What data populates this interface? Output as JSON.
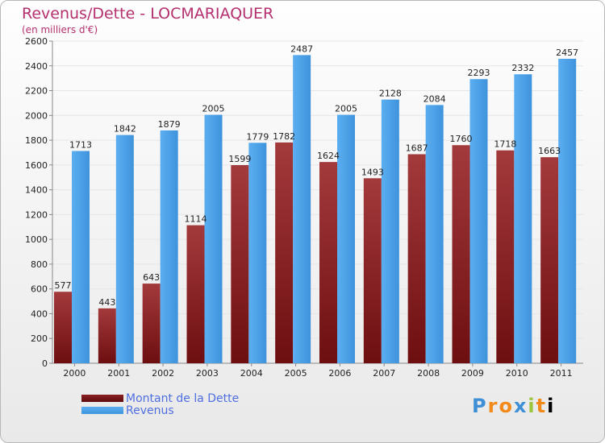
{
  "header": {
    "title": "Revenus/Dette - LOCMARIAQUER",
    "subtitle": "(en milliers d'€)"
  },
  "legend": {
    "debt_label": "Montant de la Dette",
    "revenue_label": "Revenus"
  },
  "logo": {
    "text": "Proxiti"
  },
  "colors": {
    "debt": "#7a1416",
    "debt_light": "#a33a3c",
    "revenue": "#4aa1e8",
    "revenue_light": "#62b4f2",
    "title": "#b5306e",
    "legend_text": "#4f6fe0",
    "grid": "#e6e6e6",
    "axis": "#888888"
  },
  "chart_data": {
    "type": "bar",
    "categories": [
      "2000",
      "2001",
      "2002",
      "2003",
      "2004",
      "2005",
      "2006",
      "2007",
      "2008",
      "2009",
      "2010",
      "2011"
    ],
    "series": [
      {
        "name": "Montant de la Dette",
        "values": [
          577,
          443,
          643,
          1114,
          1599,
          1782,
          1624,
          1493,
          1687,
          1760,
          1718,
          1663
        ]
      },
      {
        "name": "Revenus",
        "values": [
          1713,
          1842,
          1879,
          2005,
          1779,
          2487,
          2005,
          2128,
          2084,
          2293,
          2332,
          2457
        ]
      }
    ],
    "ylim": [
      0,
      2600
    ],
    "yticks": [
      0,
      200,
      400,
      600,
      800,
      1000,
      1200,
      1400,
      1600,
      1800,
      2000,
      2200,
      2400,
      2600
    ],
    "grid": true
  }
}
